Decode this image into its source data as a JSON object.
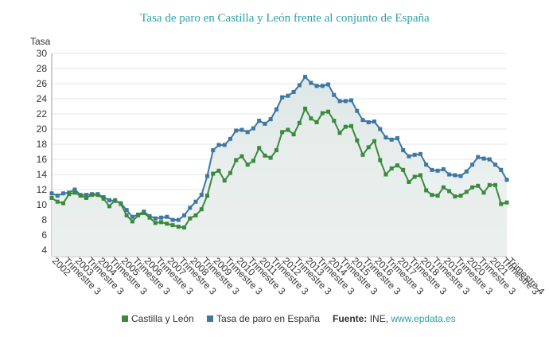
{
  "chart_data": {
    "type": "line",
    "title": "Tasa de paro en Castilla y León frente al conjunto de España",
    "y_label": "Tasa",
    "categories": [
      "2002",
      null,
      "Trimestre 3",
      null,
      "2003",
      null,
      "Trimestre 3",
      null,
      "2004",
      null,
      "Trimestre 3",
      null,
      "2005",
      null,
      "Trimestre 3",
      null,
      "2006",
      null,
      "Trimestre 3",
      null,
      "2007",
      null,
      "Trimestre 3",
      null,
      "2008",
      null,
      "Trimestre 3",
      null,
      "2009",
      null,
      "Trimestre 3",
      null,
      "2010",
      null,
      "Trimestre 3",
      null,
      "2011",
      null,
      "Trimestre 3",
      null,
      "2012",
      null,
      "Trimestre 3",
      null,
      "2013",
      null,
      "Trimestre 3",
      null,
      "2014",
      null,
      "Trimestre 3",
      null,
      "2015",
      null,
      "Trimestre 3",
      null,
      "2016",
      null,
      "Trimestre 3",
      null,
      "2017",
      null,
      "Trimestre 3",
      null,
      "2018",
      null,
      "Trimestre 3",
      null,
      "2019",
      null,
      "Trimestre 3",
      null,
      "2020",
      null,
      "Trimestre 3",
      null,
      "2021",
      null,
      "Trimestre 3",
      "Trimestre 4"
    ],
    "series": [
      {
        "name": "Castilla y León",
        "color": "#3a8a3e",
        "values": [
          10.9,
          10.4,
          10.2,
          11.4,
          11.6,
          11.2,
          10.9,
          11.3,
          11.3,
          10.8,
          9.8,
          10.6,
          10.1,
          8.6,
          7.8,
          8.6,
          8.9,
          8.3,
          7.6,
          7.7,
          7.5,
          7.3,
          7.1,
          7.0,
          8.2,
          8.6,
          9.4,
          11.2,
          14.1,
          14.5,
          13.2,
          14.2,
          15.9,
          16.4,
          15.3,
          15.8,
          17.5,
          16.5,
          16.2,
          17.2,
          19.6,
          19.9,
          19.3,
          20.8,
          22.7,
          21.4,
          20.9,
          22.1,
          22.3,
          21.1,
          19.5,
          20.3,
          20.4,
          18.5,
          16.6,
          17.6,
          18.4,
          15.9,
          14.0,
          14.8,
          15.2,
          14.6,
          13.0,
          13.7,
          13.9,
          11.9,
          11.3,
          11.2,
          12.3,
          11.8,
          11.1,
          11.2,
          11.7,
          12.3,
          12.5,
          11.6,
          12.6,
          12.6,
          10.1,
          10.3
        ]
      },
      {
        "name": "Tasa de paro en España",
        "color": "#3d77a3",
        "values": [
          11.5,
          11.2,
          11.5,
          11.6,
          12.0,
          11.3,
          11.3,
          11.4,
          11.4,
          11.0,
          10.6,
          10.5,
          10.2,
          9.3,
          8.4,
          8.7,
          9.1,
          8.5,
          8.2,
          8.3,
          8.4,
          8.0,
          8.0,
          8.6,
          9.6,
          10.4,
          11.3,
          13.8,
          17.2,
          17.9,
          17.9,
          18.7,
          19.8,
          19.9,
          19.6,
          20.1,
          21.1,
          20.7,
          21.3,
          22.6,
          24.2,
          24.4,
          24.9,
          25.8,
          26.9,
          26.1,
          25.7,
          25.7,
          25.9,
          24.5,
          23.7,
          23.7,
          23.8,
          22.4,
          21.2,
          20.9,
          21.0,
          20.0,
          18.9,
          18.6,
          18.8,
          17.2,
          16.4,
          16.6,
          16.7,
          15.3,
          14.6,
          14.5,
          14.7,
          14.0,
          13.9,
          13.8,
          14.4,
          15.3,
          16.3,
          16.1,
          16.0,
          15.3,
          14.6,
          13.3
        ]
      }
    ],
    "ylim": [
      4,
      30
    ],
    "yticks": [
      4,
      6,
      8,
      10,
      12,
      14,
      16,
      18,
      20,
      22,
      24,
      26,
      28,
      30
    ],
    "source_label": "Fuente:",
    "source": "INE,",
    "source_link": "www.epdata.es"
  }
}
